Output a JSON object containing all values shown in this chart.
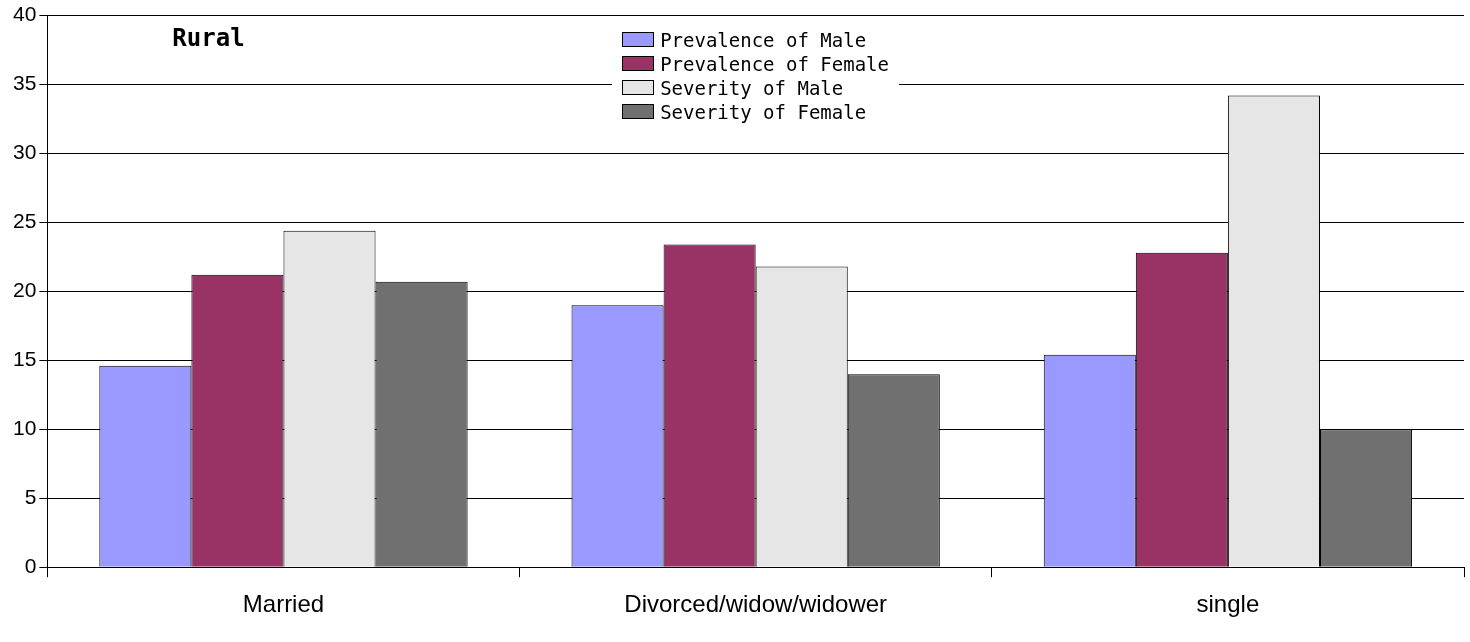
{
  "chart_data": {
    "type": "bar",
    "categories": [
      "Married",
      "Divorced/widow/widower",
      "single"
    ],
    "series": [
      {
        "name": "Prevalence of Male",
        "color": "#9999ff",
        "values": [
          14.6,
          19.0,
          15.4
        ]
      },
      {
        "name": "Prevalence of Female",
        "color": "#993366",
        "values": [
          21.2,
          23.4,
          22.8
        ]
      },
      {
        "name": "Severity of Male",
        "color": "#e6e6e6",
        "values": [
          24.4,
          21.8,
          34.2
        ]
      },
      {
        "name": "Severity of Female",
        "color": "#707070",
        "values": [
          20.7,
          14.0,
          10.0
        ]
      }
    ],
    "ylim": [
      0,
      40
    ],
    "yticks": [
      0,
      5,
      10,
      15,
      20,
      25,
      30,
      35,
      40
    ],
    "grid": "y",
    "legend": "top",
    "annotations": [
      "Rural"
    ]
  }
}
